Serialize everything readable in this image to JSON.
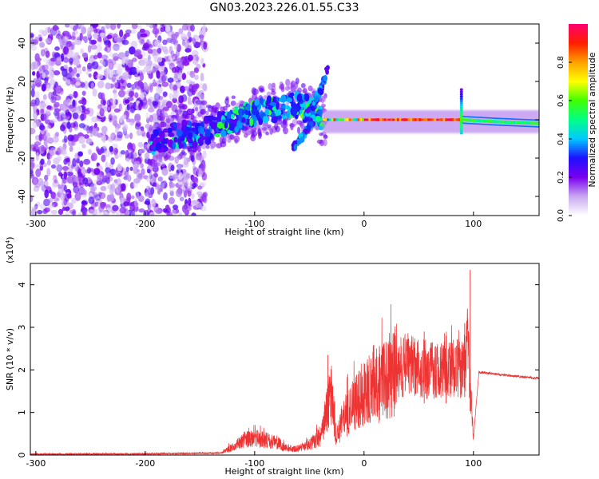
{
  "title": "GN03.2023.226.01.55.C33",
  "chart_data": [
    {
      "type": "heatmap",
      "title": "",
      "xlabel": "Height of straight line (km)",
      "ylabel": "Frequency (Hz)",
      "xlim": [
        -305,
        160
      ],
      "ylim": [
        -50,
        50
      ],
      "xticks": [
        -300,
        -200,
        -100,
        0,
        100
      ],
      "yticks": [
        -40,
        -20,
        0,
        20,
        40
      ],
      "colorbar": {
        "label": "Normalized spectral amplitude",
        "range": [
          0,
          1
        ],
        "ticks": [
          "0.0",
          "0.2",
          "0.4",
          "0.6",
          "0.8"
        ],
        "stops": [
          "#ffffff",
          "#c8a8f0",
          "#7a00f0",
          "#1e10ff",
          "#00c8ff",
          "#00ff88",
          "#40ff00",
          "#ffff00",
          "#ffa000",
          "#ff1e00",
          "#ff0070"
        ]
      },
      "features": [
        {
          "name": "noise",
          "x_range": [
            -305,
            -145
          ],
          "freq_range": [
            -50,
            50
          ],
          "amplitude": 0.1
        },
        {
          "name": "trace",
          "points": [
            [
              -195,
              -12
            ],
            [
              -170,
              -8
            ],
            [
              -150,
              -7
            ],
            [
              -130,
              -2
            ],
            [
              -110,
              2
            ],
            [
              -95,
              4
            ],
            [
              -80,
              6
            ],
            [
              -65,
              8
            ],
            [
              -50,
              6
            ],
            [
              -45,
              2
            ],
            [
              -38,
              0
            ],
            [
              -30,
              0
            ],
            [
              0,
              0
            ],
            [
              50,
              0
            ],
            [
              88,
              0
            ],
            [
              120,
              -1
            ],
            [
              160,
              -2
            ]
          ]
        },
        {
          "name": "upper-branch",
          "points": [
            [
              -55,
              0
            ],
            [
              -48,
              6
            ],
            [
              -40,
              15
            ],
            [
              -37,
              20
            ],
            [
              -33,
              27
            ]
          ]
        },
        {
          "name": "lower-branch",
          "points": [
            [
              -65,
              -15
            ],
            [
              -58,
              -10
            ],
            [
              -52,
              -5
            ],
            [
              -46,
              0
            ]
          ]
        },
        {
          "name": "spike",
          "x": 89,
          "freq_range": [
            -7,
            16
          ]
        }
      ]
    },
    {
      "type": "line",
      "title": "",
      "xlabel": "Height of straight line (km)",
      "ylabel": "SNR (10 * v/v)",
      "y_multiplier": "(x10^4)",
      "xlim": [
        -305,
        160
      ],
      "ylim": [
        0,
        4.5
      ],
      "xticks": [
        -300,
        -200,
        -100,
        0,
        100
      ],
      "yticks": [
        0,
        1,
        2,
        3,
        4
      ],
      "color": "#ee3333",
      "series": [
        {
          "x": [
            -305,
            -200,
            -130,
            -120,
            -110,
            -100,
            -90,
            -80,
            -70,
            -60,
            -50,
            -40,
            -35,
            -30,
            -25,
            -20,
            -10,
            0,
            10,
            20,
            30,
            40,
            50,
            60,
            70,
            80,
            90,
            95,
            100,
            105,
            120,
            140,
            160
          ],
          "values": [
            0.02,
            0.03,
            0.05,
            0.2,
            0.35,
            0.4,
            0.35,
            0.3,
            0.15,
            0.15,
            0.25,
            0.45,
            0.95,
            1.5,
            0.35,
            0.8,
            1.2,
            1.5,
            1.6,
            1.75,
            2.0,
            2.15,
            2.05,
            2.0,
            2.05,
            2.0,
            2.05,
            2.6,
            0.4,
            1.95,
            1.9,
            1.85,
            1.8
          ]
        }
      ],
      "spikes": [
        [
          -33,
          2.35
        ],
        [
          97,
          4.35
        ],
        [
          92,
          3.1
        ],
        [
          75,
          2.8
        ],
        [
          55,
          2.9
        ],
        [
          -15,
          1.9
        ]
      ]
    }
  ]
}
